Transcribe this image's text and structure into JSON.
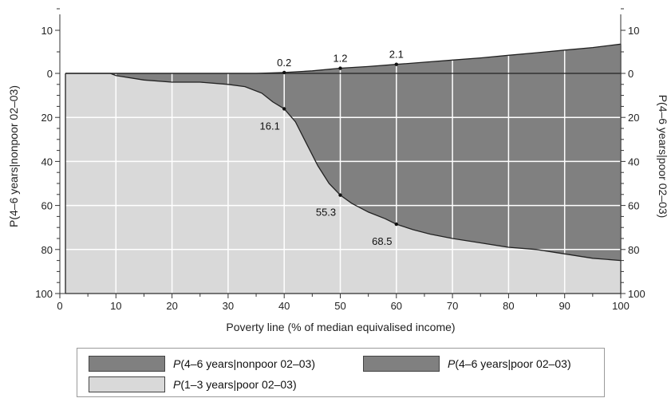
{
  "chart_data": {
    "type": "area",
    "title": "",
    "xlabel": "Poverty line (% of median equivalised income)",
    "ylabel_left": "P(4–6 years|nonpoor 02–03)",
    "ylabel_right": "P(4–6 years|poor 02–03)",
    "xlim": [
      0,
      100
    ],
    "xticks": [
      0,
      10,
      20,
      30,
      40,
      50,
      60,
      70,
      80,
      90,
      100
    ],
    "upper_axis": {
      "ylim": [
        0,
        25
      ],
      "ticks": [
        0,
        10,
        20
      ]
    },
    "lower_axis": {
      "ylim": [
        0,
        100
      ],
      "ticks": [
        0,
        20,
        40,
        60,
        80,
        100
      ]
    },
    "grid": true,
    "legend_position": "bottom",
    "colors": {
      "dark": "#808080",
      "light": "#d9d9d9",
      "grid": "#ffffff",
      "line": "#222222"
    },
    "series": [
      {
        "name": "P(4–6 years|nonpoor 02–03)",
        "panel": "upper",
        "x": [
          1,
          10,
          20,
          30,
          35,
          40,
          45,
          50,
          55,
          60,
          65,
          70,
          75,
          80,
          85,
          90,
          95,
          100
        ],
        "values": [
          0,
          0,
          0,
          0,
          0,
          0.2,
          0.6,
          1.2,
          1.6,
          2.1,
          2.6,
          3.1,
          3.6,
          4.2,
          4.8,
          5.4,
          6.0,
          6.8
        ]
      },
      {
        "name": "P(4–6 years|poor 02–03)",
        "panel": "lower",
        "x": [
          1,
          9,
          10,
          15,
          20,
          25,
          30,
          33,
          36,
          38,
          40,
          42,
          44,
          46,
          48,
          50,
          52,
          55,
          58,
          60,
          63,
          66,
          70,
          75,
          80,
          85,
          90,
          95,
          100
        ],
        "values": [
          0,
          0,
          1,
          3,
          4,
          4,
          5,
          6,
          9,
          13,
          16.1,
          22,
          32,
          42,
          50,
          55.3,
          59,
          63,
          66,
          68.5,
          71,
          73,
          75,
          77,
          79,
          80,
          82,
          84,
          85
        ]
      },
      {
        "name": "P(1–3 years|poor 02–03)",
        "panel": "lower",
        "fill": "remainder"
      }
    ],
    "annotations": [
      {
        "x": 40,
        "value": 0.2,
        "label": "0.2",
        "panel": "upper"
      },
      {
        "x": 50,
        "value": 1.2,
        "label": "1.2",
        "panel": "upper"
      },
      {
        "x": 60,
        "value": 2.1,
        "label": "2.1",
        "panel": "upper"
      },
      {
        "x": 40,
        "value": 16.1,
        "label": "16.1",
        "panel": "lower"
      },
      {
        "x": 50,
        "value": 55.3,
        "label": "55.3",
        "panel": "lower"
      },
      {
        "x": 60,
        "value": 68.5,
        "label": "68.5",
        "panel": "lower"
      }
    ]
  },
  "legend": {
    "items": [
      {
        "prefix": "P",
        "label": "(4–6 years|nonpoor 02–03)",
        "color": "#808080"
      },
      {
        "prefix": "P",
        "label": "(4–6 years|poor 02–03)",
        "color": "#808080"
      },
      {
        "prefix": "P",
        "label": "(1–3 years|poor 02–03)",
        "color": "#d9d9d9"
      }
    ]
  }
}
